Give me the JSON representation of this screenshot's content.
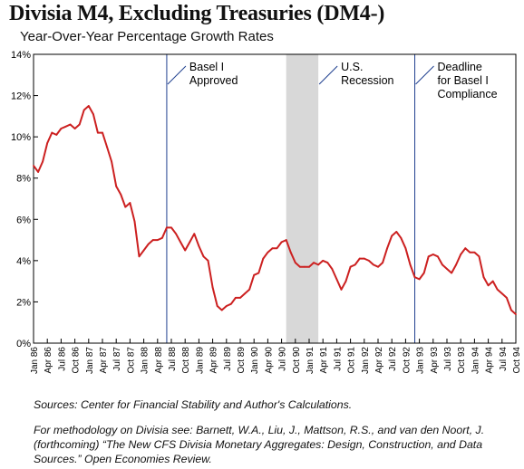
{
  "header": {
    "title": "Divisia M4, Excluding Treasuries (DM4-)",
    "subtitle": "Year-Over-Year Percentage Growth Rates"
  },
  "footer": {
    "sources": "Sources: Center for Financial Stability and Author's Calculations.",
    "methodology": "For methodology on Divisia see: Barnett, W.A., Liu, J., Mattson, R.S., and van den Noort, J. (forthcoming) “The New CFS Divisia Monetary Aggregates: Design, Construction, and Data Sources.” Open Economies Review."
  },
  "chart_data": {
    "type": "line",
    "title": "Divisia M4, Excluding Treasuries (DM4-)",
    "subtitle": "Year-Over-Year Percentage Growth Rates",
    "xlabel": "",
    "ylabel": "",
    "ylim": [
      0,
      14
    ],
    "yticks": [
      "0%",
      "2%",
      "4%",
      "6%",
      "8%",
      "10%",
      "12%",
      "14%"
    ],
    "xlim": [
      "Jan 86",
      "Oct 94"
    ],
    "xticks": [
      "Jan 86",
      "Apr 86",
      "Jul 86",
      "Oct 86",
      "Jan 87",
      "Apr 87",
      "Jul 87",
      "Oct 87",
      "Jan 88",
      "Apr 88",
      "Jul 88",
      "Oct 88",
      "Jan 89",
      "Apr 89",
      "Jul 89",
      "Oct 89",
      "Jan 90",
      "Apr 90",
      "Jul 90",
      "Oct 90",
      "Jan 91",
      "Apr 91",
      "Jul 91",
      "Oct 91",
      "Jan 92",
      "Apr 92",
      "Jul 92",
      "Oct 92",
      "Jan 93",
      "Apr 93",
      "Jul 93",
      "Oct 93",
      "Jan 94",
      "Apr 94",
      "Jul 94",
      "Oct 94"
    ],
    "grid": false,
    "line_color": "#cc2020",
    "series": [
      {
        "x": [
          "Jan 86",
          "Feb 86",
          "Mar 86",
          "Apr 86",
          "May 86",
          "Jun 86",
          "Jul 86",
          "Aug 86",
          "Sep 86",
          "Oct 86",
          "Nov 86",
          "Dec 86",
          "Jan 87",
          "Feb 87",
          "Mar 87",
          "Apr 87",
          "May 87",
          "Jun 87",
          "Jul 87",
          "Aug 87",
          "Sep 87",
          "Oct 87",
          "Nov 87",
          "Dec 87",
          "Jan 88",
          "Feb 88",
          "Mar 88",
          "Apr 88",
          "May 88",
          "Jun 88",
          "Jul 88",
          "Aug 88",
          "Sep 88",
          "Oct 88",
          "Nov 88",
          "Dec 88",
          "Jan 89",
          "Feb 89",
          "Mar 89",
          "Apr 89",
          "May 89",
          "Jun 89",
          "Jul 89",
          "Aug 89",
          "Sep 89",
          "Oct 89",
          "Nov 89",
          "Dec 89",
          "Jan 90",
          "Feb 90",
          "Mar 90",
          "Apr 90",
          "May 90",
          "Jun 90",
          "Jul 90",
          "Aug 90",
          "Sep 90",
          "Oct 90",
          "Nov 90",
          "Dec 90",
          "Jan 91",
          "Feb 91",
          "Mar 91",
          "Apr 91",
          "May 91",
          "Jun 91",
          "Jul 91",
          "Aug 91",
          "Sep 91",
          "Oct 91",
          "Nov 91",
          "Dec 91",
          "Jan 92",
          "Feb 92",
          "Mar 92",
          "Apr 92",
          "May 92",
          "Jun 92",
          "Jul 92",
          "Aug 92",
          "Sep 92",
          "Oct 92",
          "Nov 92",
          "Dec 92",
          "Jan 93",
          "Feb 93",
          "Mar 93",
          "Apr 93",
          "May 93",
          "Jun 93",
          "Jul 93",
          "Aug 93",
          "Sep 93",
          "Oct 93",
          "Nov 93",
          "Dec 93",
          "Jan 94",
          "Feb 94",
          "Mar 94",
          "Apr 94",
          "May 94",
          "Jun 94",
          "Jul 94",
          "Aug 94",
          "Sep 94",
          "Oct 94"
        ],
        "values": [
          8.6,
          8.3,
          8.8,
          9.7,
          10.2,
          10.1,
          10.4,
          10.5,
          10.6,
          10.4,
          10.6,
          11.3,
          11.5,
          11.1,
          10.2,
          10.2,
          9.5,
          8.8,
          7.6,
          7.2,
          6.6,
          6.8,
          5.9,
          4.2,
          4.5,
          4.8,
          5.0,
          5.0,
          5.1,
          5.6,
          5.6,
          5.3,
          4.9,
          4.5,
          4.9,
          5.3,
          4.7,
          4.2,
          4.0,
          2.7,
          1.8,
          1.6,
          1.8,
          1.9,
          2.2,
          2.2,
          2.4,
          2.6,
          3.3,
          3.4,
          4.1,
          4.4,
          4.6,
          4.6,
          4.9,
          5.0,
          4.4,
          3.9,
          3.7,
          3.7,
          3.7,
          3.9,
          3.8,
          4.0,
          3.9,
          3.6,
          3.1,
          2.6,
          3.0,
          3.7,
          3.8,
          4.1,
          4.1,
          4.0,
          3.8,
          3.7,
          3.9,
          4.6,
          5.2,
          5.4,
          5.1,
          4.6,
          3.8,
          3.2,
          3.1,
          3.4,
          4.2,
          4.3,
          4.2,
          3.8,
          3.6,
          3.4,
          3.8,
          4.3,
          4.6,
          4.4,
          4.4,
          4.2,
          3.2,
          2.8,
          3.0,
          2.6,
          2.4,
          2.2,
          1.6,
          1.4
        ]
      }
    ],
    "shaded_region": {
      "x_start": "Aug 90",
      "x_end": "Mar 91",
      "color": "#d8d8d8"
    },
    "annotations": [
      {
        "x": "Jun 88",
        "lines": [
          "Basel I",
          "Approved"
        ]
      },
      {
        "x": "Mar 91",
        "lines": [
          "U.S.",
          "Recession"
        ]
      },
      {
        "x": "Dec 92",
        "lines": [
          "Deadline",
          "for Basel I",
          "Compliance"
        ]
      }
    ]
  }
}
